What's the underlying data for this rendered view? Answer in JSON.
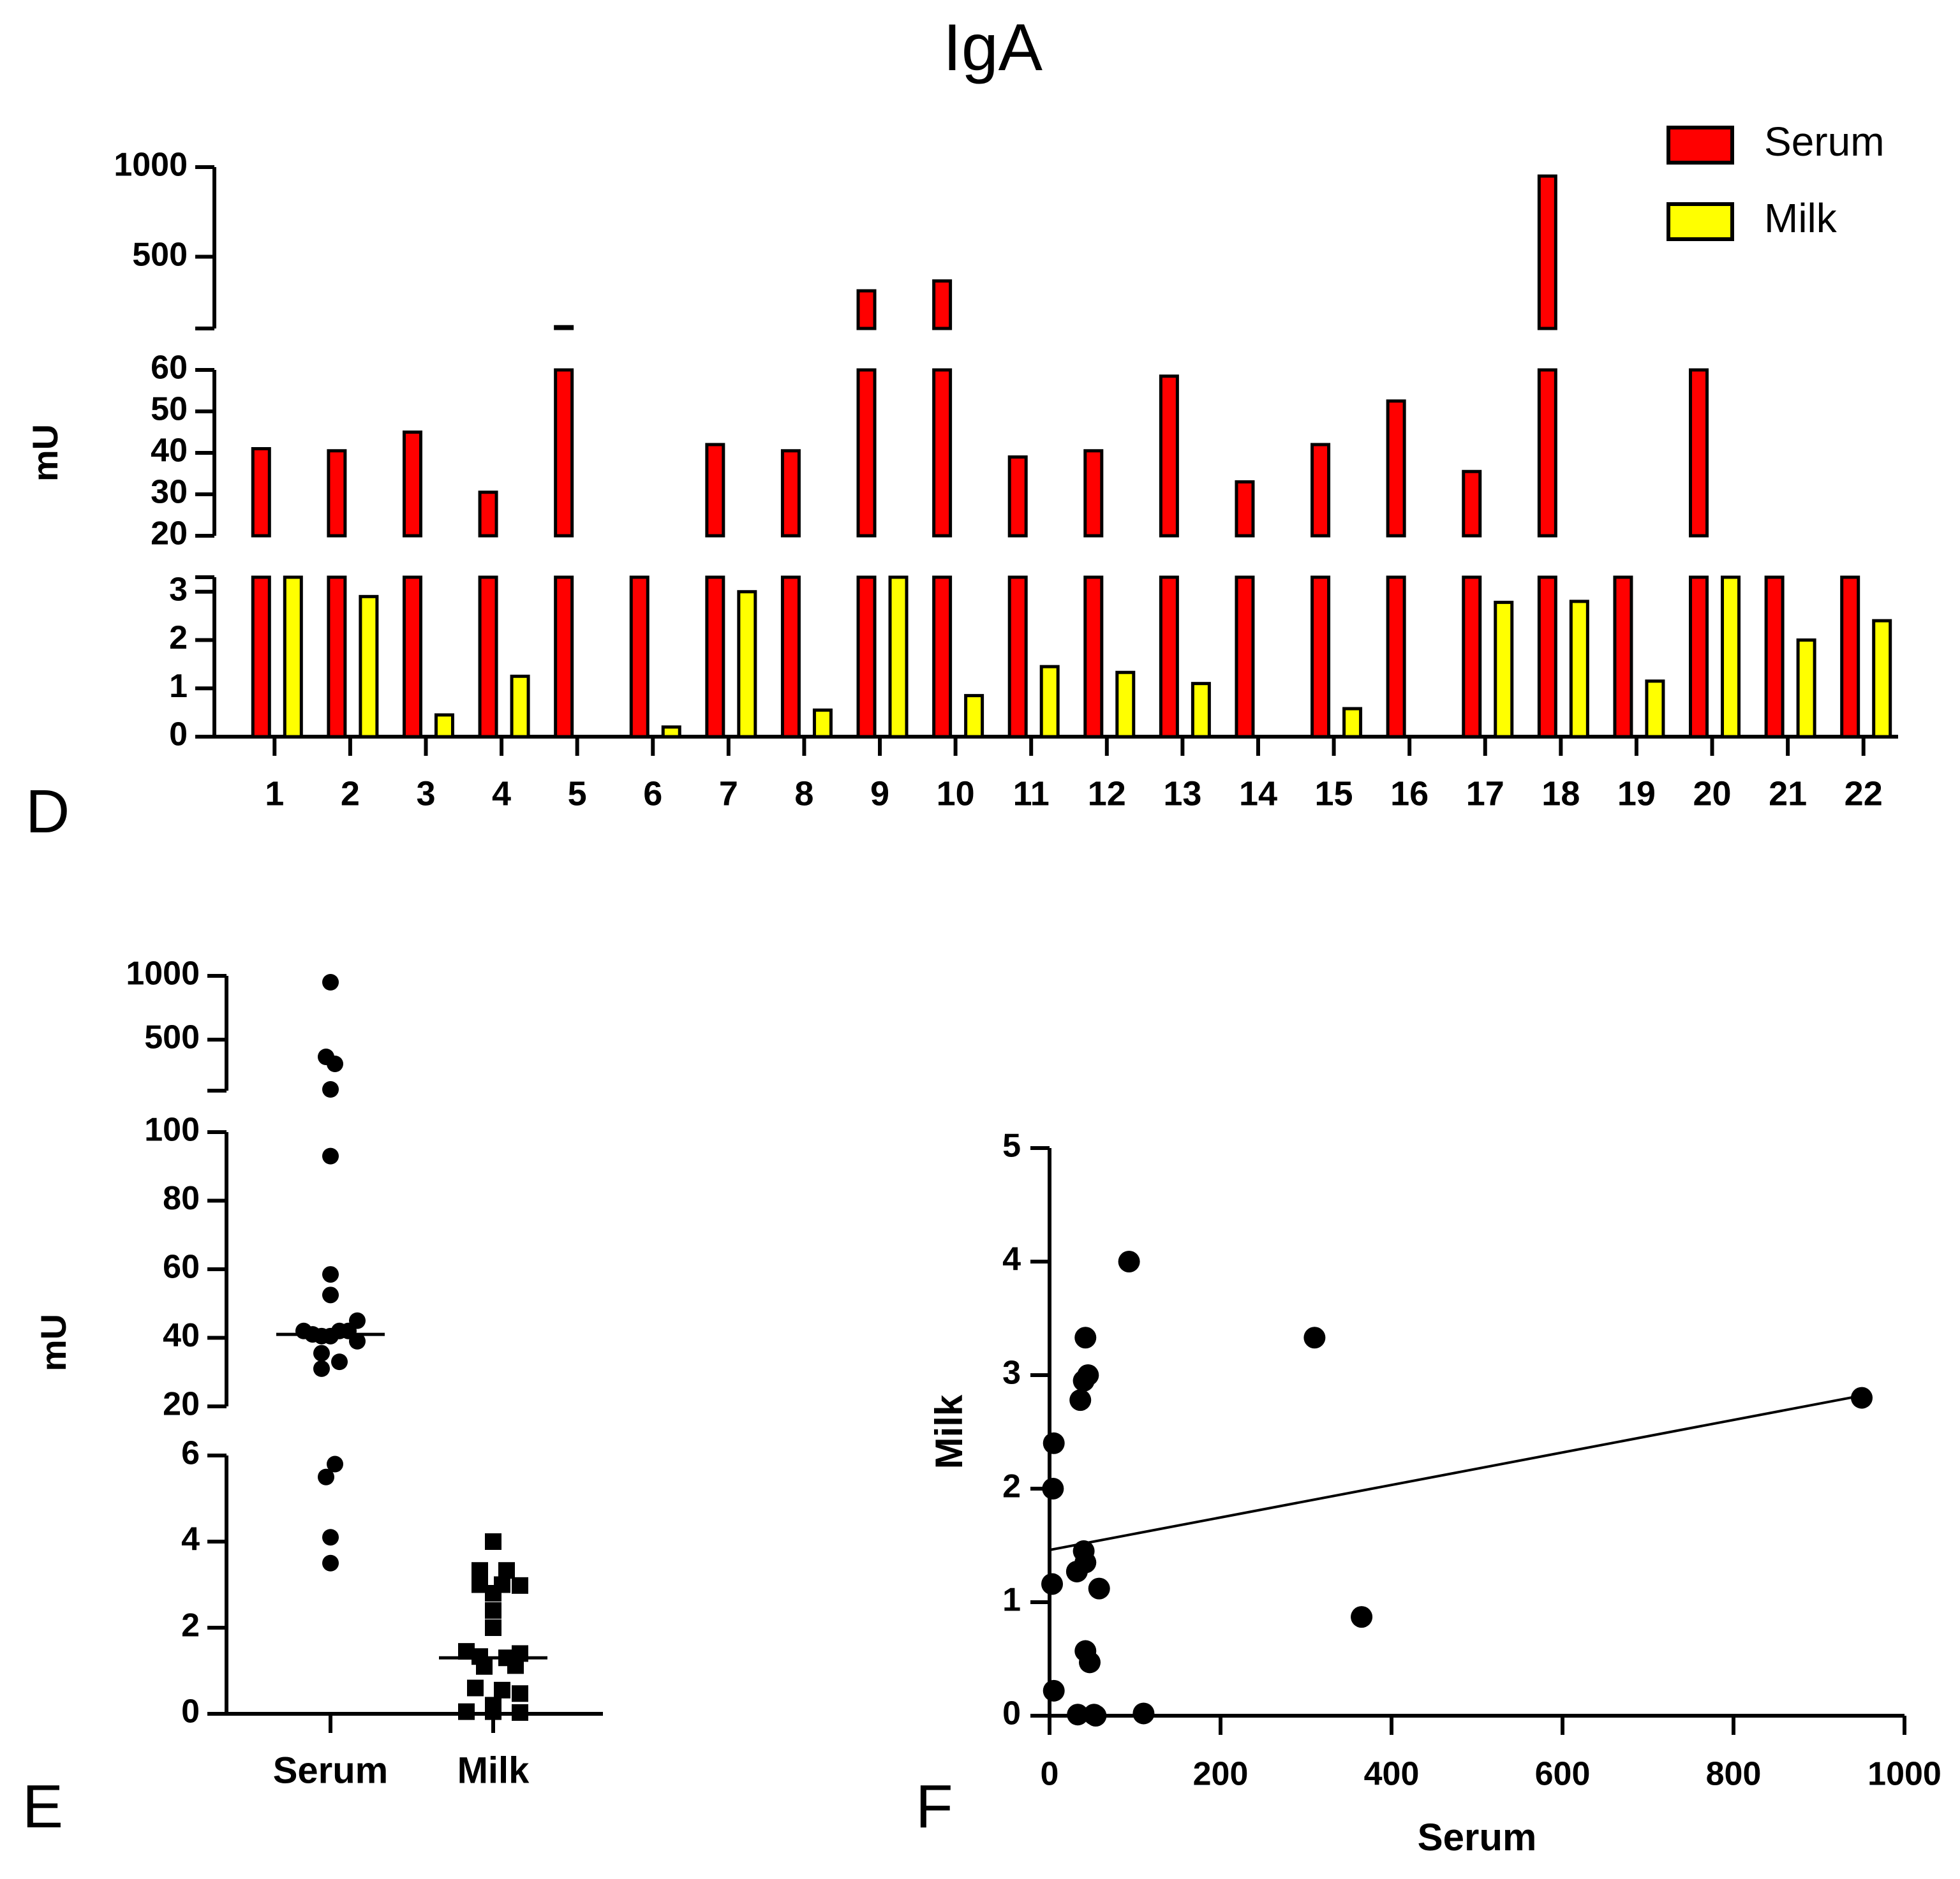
{
  "figure": {
    "title": "IgA",
    "panel_labels": {
      "d": "D",
      "e": "E",
      "f": "F"
    },
    "colors": {
      "serum": "#ff0000",
      "milk": "#ffff00",
      "ink": "#000000"
    }
  },
  "chart_data": [
    {
      "panel": "D",
      "type": "bar",
      "ylabel": "mU",
      "xlabel": "",
      "axis_breaks": true,
      "segments": [
        {
          "range": [
            0,
            3.3
          ],
          "ticks": [
            0,
            1,
            2,
            3
          ]
        },
        {
          "range": [
            20,
            60
          ],
          "ticks": [
            20,
            30,
            40,
            50,
            60
          ]
        },
        {
          "range": [
            100,
            1000
          ],
          "ticks": [
            500,
            1000
          ]
        }
      ],
      "categories": [
        "1",
        "2",
        "3",
        "4",
        "5",
        "6",
        "7",
        "8",
        "9",
        "10",
        "11",
        "12",
        "13",
        "14",
        "15",
        "16",
        "17",
        "18",
        "19",
        "20",
        "21",
        "22"
      ],
      "legend": {
        "position": "top-right"
      },
      "series": [
        {
          "name": "Serum",
          "color": "#ff0000",
          "values": [
            41,
            40.5,
            45,
            30.5,
            110,
            5.5,
            42,
            40.5,
            310,
            365,
            39,
            40.5,
            58.5,
            33,
            42,
            52.5,
            35.5,
            950,
            4.1,
            90,
            3.5,
            5.8
          ]
        },
        {
          "name": "Milk",
          "color": "#ffff00",
          "values": [
            3.3,
            2.9,
            0.45,
            1.25,
            0,
            0.2,
            3.0,
            0.55,
            3.3,
            0.85,
            1.45,
            1.33,
            1.1,
            0,
            0.58,
            0,
            2.78,
            2.8,
            1.15,
            4.0,
            2.0,
            2.4
          ]
        }
      ]
    },
    {
      "panel": "E",
      "type": "scatter",
      "ylabel": "mU",
      "xlabel": "",
      "axis_breaks": true,
      "segments": [
        {
          "range": [
            0,
            6
          ],
          "ticks": [
            0,
            2,
            4,
            6
          ]
        },
        {
          "range": [
            20,
            100
          ],
          "ticks": [
            20,
            40,
            60,
            80,
            100
          ]
        },
        {
          "range": [
            100,
            1000
          ],
          "ticks": [
            500,
            1000
          ]
        }
      ],
      "categories": [
        "Serum",
        "Milk"
      ],
      "series": [
        {
          "name": "Serum",
          "marker": "circle",
          "median": 41,
          "points": [
            [
              0,
              950
            ],
            [
              -0.05,
              365
            ],
            [
              0.05,
              310
            ],
            [
              0,
              110
            ],
            [
              0,
              93
            ],
            [
              0,
              58.5
            ],
            [
              0,
              52.5
            ],
            [
              -0.3,
              42
            ],
            [
              -0.2,
              41
            ],
            [
              -0.1,
              40.5
            ],
            [
              0,
              40.5
            ],
            [
              0.1,
              42
            ],
            [
              0.2,
              42
            ],
            [
              0.3,
              45
            ],
            [
              0.3,
              39
            ],
            [
              -0.1,
              35.5
            ],
            [
              0.1,
              33
            ],
            [
              -0.1,
              31
            ],
            [
              0.05,
              5.8
            ],
            [
              -0.05,
              5.5
            ],
            [
              0,
              4.1
            ],
            [
              0,
              3.5
            ]
          ]
        },
        {
          "name": "Milk",
          "marker": "square",
          "median": 1.3,
          "points": [
            [
              0,
              4.0
            ],
            [
              -0.15,
              3.33
            ],
            [
              0.15,
              3.33
            ],
            [
              -0.15,
              3.0
            ],
            [
              0.1,
              3.0
            ],
            [
              0.3,
              2.98
            ],
            [
              0,
              2.8
            ],
            [
              0,
              2.4
            ],
            [
              0,
              2.0
            ],
            [
              0.3,
              1.4
            ],
            [
              -0.3,
              1.45
            ],
            [
              -0.15,
              1.33
            ],
            [
              0.15,
              1.3
            ],
            [
              -0.1,
              1.1
            ],
            [
              0.25,
              1.12
            ],
            [
              -0.2,
              0.6
            ],
            [
              0.1,
              0.55
            ],
            [
              0.3,
              0.47
            ],
            [
              -0.3,
              0.05
            ],
            [
              0,
              0.05
            ],
            [
              0.3,
              0.03
            ],
            [
              0,
              0.2
            ]
          ]
        }
      ]
    },
    {
      "panel": "F",
      "type": "scatter",
      "xlabel": "Serum",
      "ylabel": "Milk",
      "xlim": [
        0,
        1000
      ],
      "ylim": [
        0,
        5
      ],
      "xticks": [
        0,
        200,
        400,
        600,
        800,
        1000
      ],
      "yticks": [
        0,
        1,
        2,
        3,
        4,
        5
      ],
      "points": [
        [
          950,
          2.8
        ],
        [
          310,
          3.33
        ],
        [
          365,
          0.87
        ],
        [
          93,
          4.0
        ],
        [
          42,
          3.33
        ],
        [
          45,
          3.0
        ],
        [
          40,
          2.95
        ],
        [
          36,
          2.78
        ],
        [
          5,
          2.4
        ],
        [
          4,
          2.0
        ],
        [
          40,
          1.45
        ],
        [
          42,
          1.35
        ],
        [
          32,
          1.27
        ],
        [
          58,
          1.12
        ],
        [
          3,
          1.16
        ],
        [
          42,
          0.57
        ],
        [
          47,
          0.47
        ],
        [
          5,
          0.22
        ],
        [
          110,
          0.02
        ],
        [
          33,
          0.01
        ],
        [
          52,
          0.01
        ],
        [
          54,
          0.0
        ]
      ],
      "trendline": {
        "x": [
          0,
          950
        ],
        "y": [
          1.46,
          2.82
        ]
      }
    }
  ]
}
